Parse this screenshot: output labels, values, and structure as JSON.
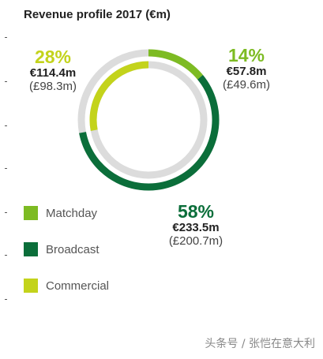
{
  "chart_data": {
    "type": "pie",
    "title": "Revenue profile 2017 (€m)",
    "segments": [
      {
        "name": "Matchday",
        "percent": 14,
        "value_eur": "€57.8m",
        "value_gbp": "(£49.6m)",
        "color": "#7dbb23"
      },
      {
        "name": "Broadcast",
        "percent": 58,
        "value_eur": "€233.5m",
        "value_gbp": "(£200.7m)",
        "color": "#0b6e3a"
      },
      {
        "name": "Commercial",
        "percent": 28,
        "value_eur": "€114.4m",
        "value_gbp": "(£98.3m)",
        "color": "#c3d31b"
      }
    ],
    "labels": {
      "matchday_pct": "14%",
      "broadcast_pct": "58%",
      "commercial_pct": "28%"
    },
    "track_color": "#dcdcdc"
  },
  "legend": [
    {
      "label": "Matchday",
      "color": "#7dbb23"
    },
    {
      "label": "Broadcast",
      "color": "#0b6e3a"
    },
    {
      "label": "Commercial",
      "color": "#c3d31b"
    }
  ],
  "watermark": "头条号 / 张恺在意大利"
}
